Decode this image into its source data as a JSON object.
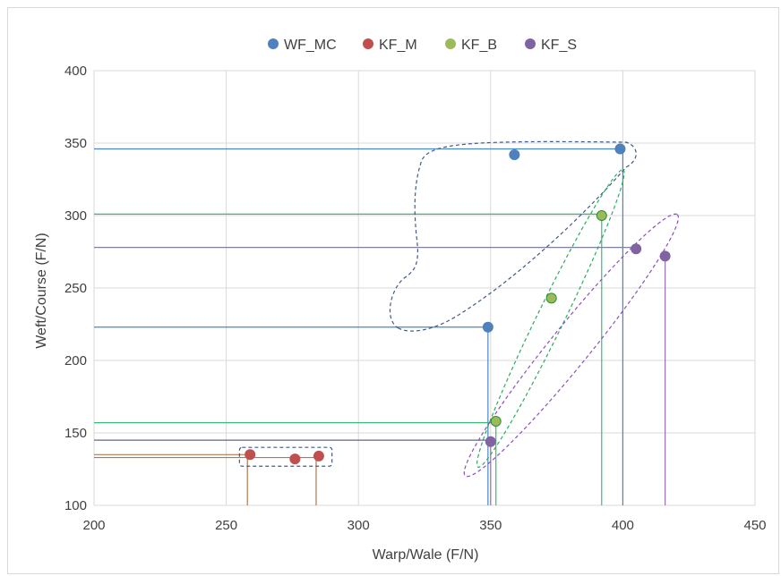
{
  "chart_data": {
    "type": "scatter",
    "xlabel": "Warp/Wale (F/N)",
    "ylabel": "Weft/Course (F/N)",
    "xlim": [
      200,
      450
    ],
    "ylim": [
      100,
      400
    ],
    "xticks": [
      200,
      250,
      300,
      350,
      400,
      450
    ],
    "yticks": [
      100,
      150,
      200,
      250,
      300,
      350,
      400
    ],
    "grid": true,
    "legend_position": "top",
    "series": [
      {
        "name": "WF_MC",
        "color": "#4f81bd",
        "line_color": "#4a86c5",
        "points": [
          {
            "x": 349,
            "y": 223
          },
          {
            "x": 359,
            "y": 342
          },
          {
            "x": 399,
            "y": 346
          }
        ]
      },
      {
        "name": "KF_M",
        "color": "#c0504d",
        "line_color": "#b07040",
        "points": [
          {
            "x": 259,
            "y": 135
          },
          {
            "x": 276,
            "y": 132
          },
          {
            "x": 285,
            "y": 134
          }
        ]
      },
      {
        "name": "KF_B",
        "color": "#9bbb59",
        "line_color": "#2db373",
        "points": [
          {
            "x": 352,
            "y": 158
          },
          {
            "x": 373,
            "y": 243
          },
          {
            "x": 392,
            "y": 300
          }
        ]
      },
      {
        "name": "KF_S",
        "color": "#8064a2",
        "line_color": "#7a5a9a",
        "points": [
          {
            "x": 350,
            "y": 144
          },
          {
            "x": 405,
            "y": 277
          },
          {
            "x": 416,
            "y": 272
          }
        ]
      }
    ],
    "reference_lines": [
      {
        "series": "WF_MC",
        "y": 346,
        "x_to": 399,
        "color": "#4a86c5"
      },
      {
        "series": "WF_MC",
        "y": 223,
        "x_to": 349,
        "color": "#4a86c5"
      },
      {
        "series": "WF_MC",
        "x": 349,
        "y_to": 223,
        "color": "#4a86c5"
      },
      {
        "series": "WF_MC",
        "x": 400,
        "y_to": 346,
        "color": "#4a86c5"
      },
      {
        "series": "KF_B",
        "y": 301,
        "x_to": 392,
        "color": "#3cb878"
      },
      {
        "series": "KF_B",
        "y": 157,
        "x_to": 352,
        "color": "#3cb878"
      },
      {
        "series": "KF_B",
        "x": 352,
        "y_to": 158,
        "color": "#3cb878"
      },
      {
        "series": "KF_B",
        "x": 392,
        "y_to": 300,
        "color": "#3cb878"
      },
      {
        "series": "KF_S",
        "y": 278,
        "x_to": 405,
        "color": "#7f7f9f"
      },
      {
        "series": "KF_S",
        "y": 145,
        "x_to": 350,
        "color": "#666680"
      },
      {
        "series": "KF_S",
        "x": 350,
        "y_to": 144,
        "color": "#9b6bb5"
      },
      {
        "series": "KF_S",
        "x": 416,
        "y_to": 272,
        "color": "#9b6bb5"
      },
      {
        "series": "KF_M",
        "y": 135,
        "x_to": 259,
        "color": "#b07a50"
      },
      {
        "series": "KF_M",
        "y": 133,
        "x_to": 285,
        "color": "#b07a50"
      },
      {
        "series": "KF_M",
        "x": 258,
        "y_to": 135,
        "color": "#b07a50"
      },
      {
        "series": "KF_M",
        "x": 284,
        "y_to": 133,
        "color": "#b07a50"
      }
    ],
    "group_outlines": [
      {
        "series": "WF_MC",
        "shape": "dashed-rounded-polygon",
        "color": "#3f5a8a"
      },
      {
        "series": "KF_B",
        "shape": "dashed-ellipse",
        "color": "#2eaa60"
      },
      {
        "series": "KF_S",
        "shape": "dashed-ellipse",
        "color": "#8c4fc0"
      },
      {
        "series": "KF_M",
        "shape": "dashed-rectangle",
        "color": "#3f5a8a"
      }
    ]
  }
}
